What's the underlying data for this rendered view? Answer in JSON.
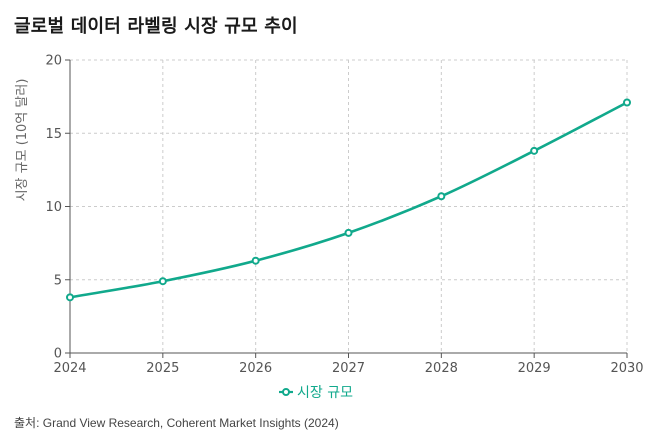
{
  "title": "글로벌 데이터 라벨링 시장 규모 추이",
  "source": {
    "label": "출처:",
    "text": "Grand View Research, Coherent Market Insights (2024)"
  },
  "colors": {
    "series": "#11a98c",
    "grid": "#cccccc",
    "axis": "#555555"
  },
  "chart_data": {
    "type": "line",
    "title": "글로벌 데이터 라벨링 시장 규모 추이",
    "xlabel": "",
    "ylabel": "시장 규모 (10억 달러)",
    "x": [
      "2024",
      "2025",
      "2026",
      "2027",
      "2028",
      "2029",
      "2030"
    ],
    "ylim": [
      0,
      20
    ],
    "yticks": [
      0,
      5,
      10,
      15,
      20
    ],
    "grid": true,
    "legend_position": "bottom-center",
    "series": [
      {
        "name": "시장 규모",
        "values": [
          3.8,
          4.9,
          6.3,
          8.2,
          10.7,
          13.8,
          17.1
        ]
      }
    ]
  }
}
